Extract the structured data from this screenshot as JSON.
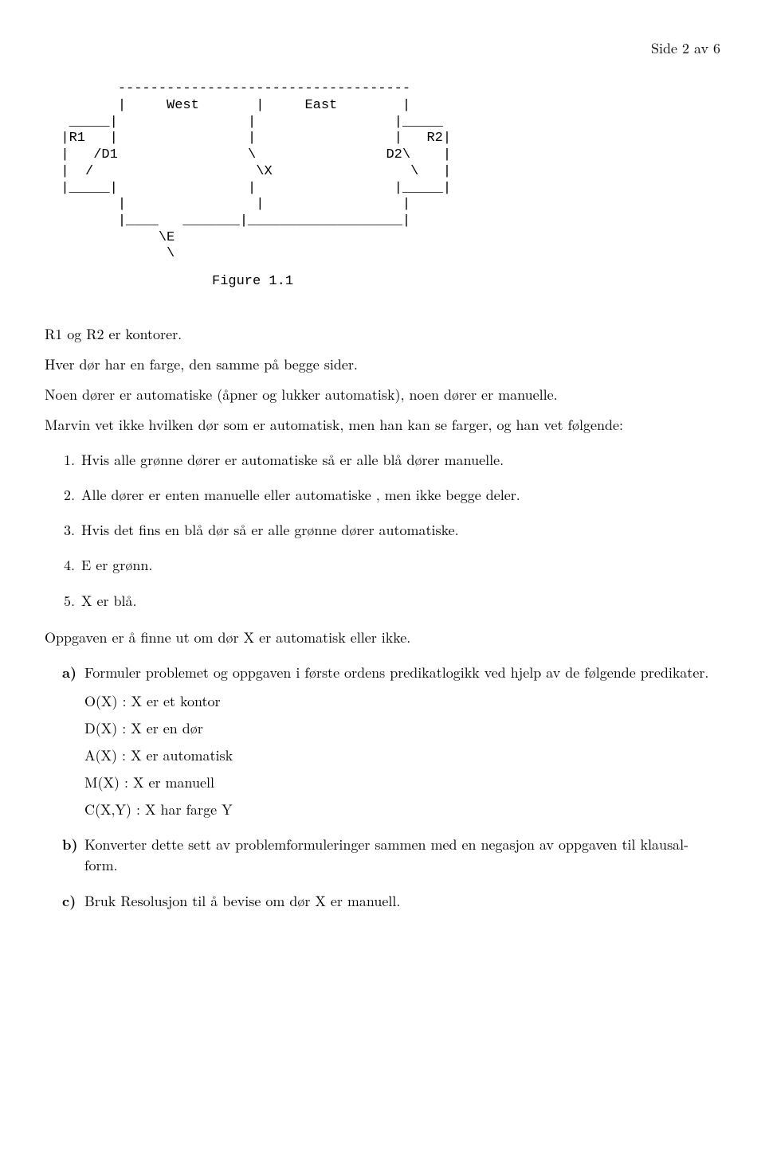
{
  "header": {
    "page_label": "Side 2 av 6"
  },
  "figure": {
    "ascii": "         ------------------------------------\n         |     West       |     East        |\n   _____|                |                 |_____\n  |R1   |                |                 |   R2|\n  |   /D1                \\                D2\\    |\n  |  /                    \\X                 \\   |\n  |_____|                |                 |_____|\n         |                |                 |\n         |____   _______|___________________|\n              \\E\n               \\",
    "caption": "Figure 1.1"
  },
  "intro": {
    "p1": "R1 og R2 er kontorer.",
    "p2": "Hver dør har en farge, den samme på begge sider.",
    "p3": "Noen dører er automatiske (åpner og lukker automatisk), noen dører er manuelle.",
    "p4": "Marvin vet ikke hvilken dør som er automatisk, men han kan se farger, og han vet følgende:"
  },
  "facts": [
    "Hvis alle grønne dører er automatiske så er alle blå dører manuelle.",
    "Alle dører er enten manuelle eller automatiske , men ikke begge deler.",
    "Hvis det fins en blå dør så er alle grønne dører automatiske.",
    "E er grønn.",
    "X er blå."
  ],
  "task_statement": "Oppgaven er å finne ut om dør X er automatisk eller ikke.",
  "subtasks": {
    "a": {
      "text": "Formuler problemet og oppgaven i første ordens predikatlogikk ved hjelp av de følgende predikater.",
      "predicates": [
        "O(X) : X er et kontor",
        "D(X) : X er en dør",
        "A(X) : X er automatisk",
        "M(X) : X er manuell",
        "C(X,Y) : X har farge Y"
      ]
    },
    "b": "Konverter dette sett av problemformuleringer sammen med en negasjon av oppgaven til klausal-form.",
    "c": "Bruk Resolusjon til å bevise om dør X er manuell."
  }
}
